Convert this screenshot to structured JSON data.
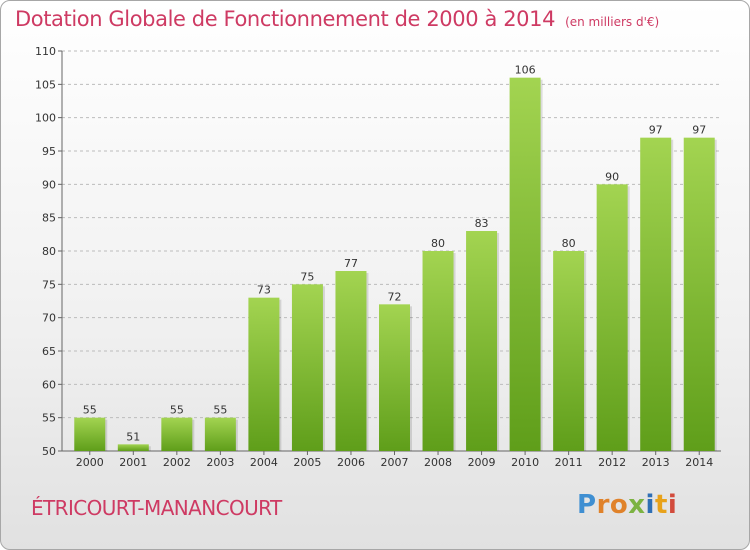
{
  "title": "Dotation Globale de Fonctionnement de 2000 à 2014",
  "unit_note": "(en milliers d'€)",
  "commune": "ÉTRICOURT-MANANCOURT",
  "logo": {
    "letters": [
      "P",
      "r",
      "o",
      "x",
      "i",
      "t",
      "i"
    ],
    "colors": [
      "#3f8fd2",
      "#e0822a",
      "#e0822a",
      "#7cb342",
      "#2f6fb5",
      "#e8a21a",
      "#d24b3c"
    ]
  },
  "colors": {
    "title": "#ce3a63",
    "bar_light": "#a3d451",
    "bar_dark": "#5f9e1a",
    "grid": "#bcbcbc"
  },
  "chart_data": {
    "type": "bar",
    "title": "Dotation Globale de Fonctionnement de 2000 à 2014",
    "xlabel": "",
    "ylabel": "",
    "categories": [
      "2000",
      "2001",
      "2002",
      "2003",
      "2004",
      "2005",
      "2006",
      "2007",
      "2008",
      "2009",
      "2010",
      "2011",
      "2012",
      "2013",
      "2014"
    ],
    "values": [
      55,
      51,
      55,
      55,
      73,
      75,
      77,
      72,
      80,
      83,
      106,
      80,
      90,
      97,
      97
    ],
    "ylim": [
      50,
      110
    ],
    "yticks": [
      50,
      55,
      60,
      65,
      70,
      75,
      80,
      85,
      90,
      95,
      100,
      105,
      110
    ],
    "grid": true,
    "data_labels": true
  }
}
